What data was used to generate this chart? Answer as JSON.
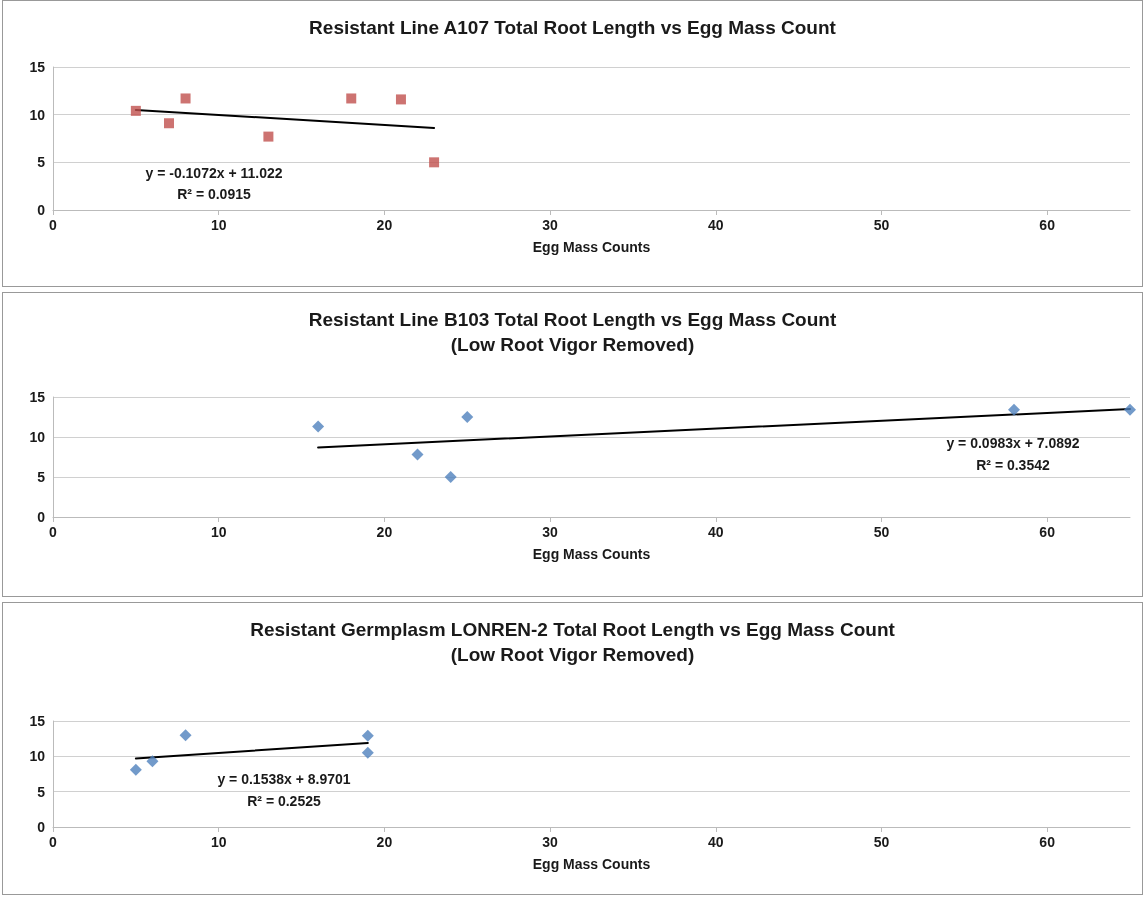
{
  "chart_data": [
    {
      "type": "scatter",
      "title": "Resistant Line A107 Total Root Length vs Egg Mass Count",
      "xlabel": "Egg Mass Counts",
      "xlim": [
        0,
        65
      ],
      "xticks": [
        0,
        10,
        20,
        30,
        40,
        50,
        60
      ],
      "ylim": [
        0,
        15
      ],
      "yticks": [
        0,
        5,
        10,
        15
      ],
      "grid": "y",
      "marker": "square",
      "series": [
        {
          "color": "#c0504d",
          "x": [
            5,
            7,
            8,
            13,
            18,
            21,
            23
          ],
          "values": [
            10.4,
            9.1,
            11.7,
            7.7,
            11.7,
            11.6,
            5.0
          ]
        },
        {
          "type": "line",
          "marker": "none",
          "line_style": "solid",
          "color": "#000000",
          "x": [
            5,
            23
          ],
          "values": [
            10.5,
            8.6
          ]
        }
      ],
      "annotations": [
        "y = -0.1072x + 11.022",
        "R² = 0.0915"
      ]
    },
    {
      "type": "scatter",
      "title": "Resistant Line B103 Total Root Length vs Egg Mass Count",
      "subtitle": "(Low Root Vigor Removed)",
      "xlabel": "Egg Mass Counts",
      "xlim": [
        0,
        65
      ],
      "xticks": [
        0,
        10,
        20,
        30,
        40,
        50,
        60
      ],
      "ylim": [
        0,
        15
      ],
      "yticks": [
        0,
        5,
        10,
        15
      ],
      "grid": "y",
      "marker": "diamond",
      "series": [
        {
          "color": "#4f81bd",
          "x": [
            16,
            22,
            24,
            25,
            58,
            65
          ],
          "values": [
            11.3,
            7.8,
            5.0,
            12.5,
            13.4,
            13.4
          ]
        },
        {
          "type": "line",
          "marker": "none",
          "line_style": "solid",
          "color": "#000000",
          "x": [
            16,
            65
          ],
          "values": [
            8.7,
            13.5
          ]
        }
      ],
      "annotations": [
        "y = 0.0983x + 7.0892",
        "R² = 0.3542"
      ]
    },
    {
      "type": "scatter",
      "title": "Resistant Germplasm LONREN-2 Total Root Length vs Egg Mass Count",
      "subtitle": "(Low Root Vigor Removed)",
      "xlabel": "Egg Mass Counts",
      "xlim": [
        0,
        65
      ],
      "xticks": [
        0,
        10,
        20,
        30,
        40,
        50,
        60
      ],
      "ylim": [
        0,
        15
      ],
      "yticks": [
        0,
        5,
        10,
        15
      ],
      "grid": "y",
      "marker": "diamond",
      "series": [
        {
          "color": "#4f81bd",
          "x": [
            5,
            6,
            8,
            19,
            19
          ],
          "values": [
            8.1,
            9.3,
            13.0,
            12.9,
            10.5
          ]
        },
        {
          "type": "line",
          "marker": "none",
          "line_style": "solid",
          "color": "#000000",
          "x": [
            5,
            19
          ],
          "values": [
            9.7,
            11.9
          ]
        }
      ],
      "annotations": [
        "y = 0.1538x + 8.9701",
        "R² = 0.2525"
      ]
    }
  ]
}
